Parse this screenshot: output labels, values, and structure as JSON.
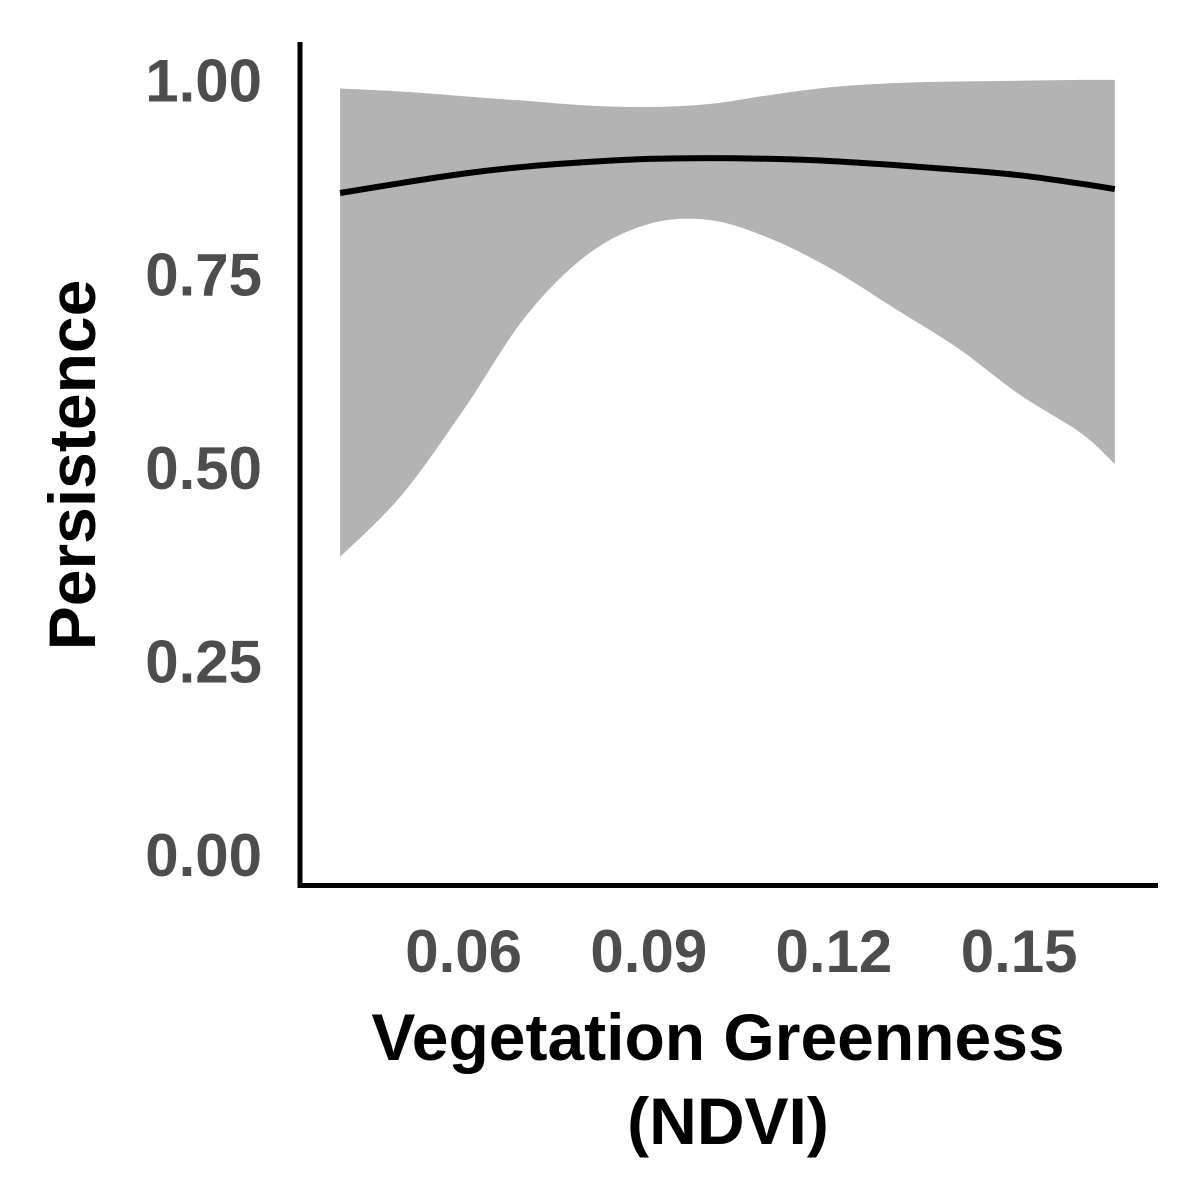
{
  "chart_data": {
    "type": "line",
    "title": "",
    "xlabel_lines": [
      "Vegetation Greenness",
      "(NDVI)"
    ],
    "ylabel": "Persistence",
    "xlim": [
      0.0335,
      0.1725
    ],
    "ylim": [
      -0.04,
      1.05
    ],
    "x_ticks": [
      0.06,
      0.09,
      0.12,
      0.15
    ],
    "x_tick_labels": [
      "0.06",
      "0.09",
      "0.12",
      "0.15"
    ],
    "y_ticks": [
      0.0,
      0.25,
      0.5,
      0.75,
      1.0
    ],
    "y_tick_labels": [
      "0.00",
      "0.25",
      "0.50",
      "0.75",
      "1.00"
    ],
    "grid": false,
    "legend": "none",
    "colors": {
      "line": "#000000",
      "ribbon": "#b3b3b3",
      "axis": "#000000",
      "tick_text": "#4d4d4d"
    },
    "series": [
      {
        "x": [
          0.04,
          0.05,
          0.06,
          0.07,
          0.08,
          0.09,
          0.1,
          0.11,
          0.12,
          0.13,
          0.14,
          0.15,
          0.16,
          0.1655
        ],
        "y": [
          0.855,
          0.868,
          0.88,
          0.889,
          0.895,
          0.899,
          0.9,
          0.899,
          0.896,
          0.891,
          0.885,
          0.878,
          0.867,
          0.86
        ],
        "lower": [
          0.385,
          0.465,
          0.575,
          0.695,
          0.775,
          0.815,
          0.82,
          0.795,
          0.755,
          0.705,
          0.655,
          0.595,
          0.545,
          0.505
        ],
        "upper": [
          0.99,
          0.986,
          0.98,
          0.974,
          0.968,
          0.966,
          0.97,
          0.982,
          0.992,
          0.997,
          0.999,
          1.0,
          1.001,
          1.001
        ]
      }
    ]
  }
}
